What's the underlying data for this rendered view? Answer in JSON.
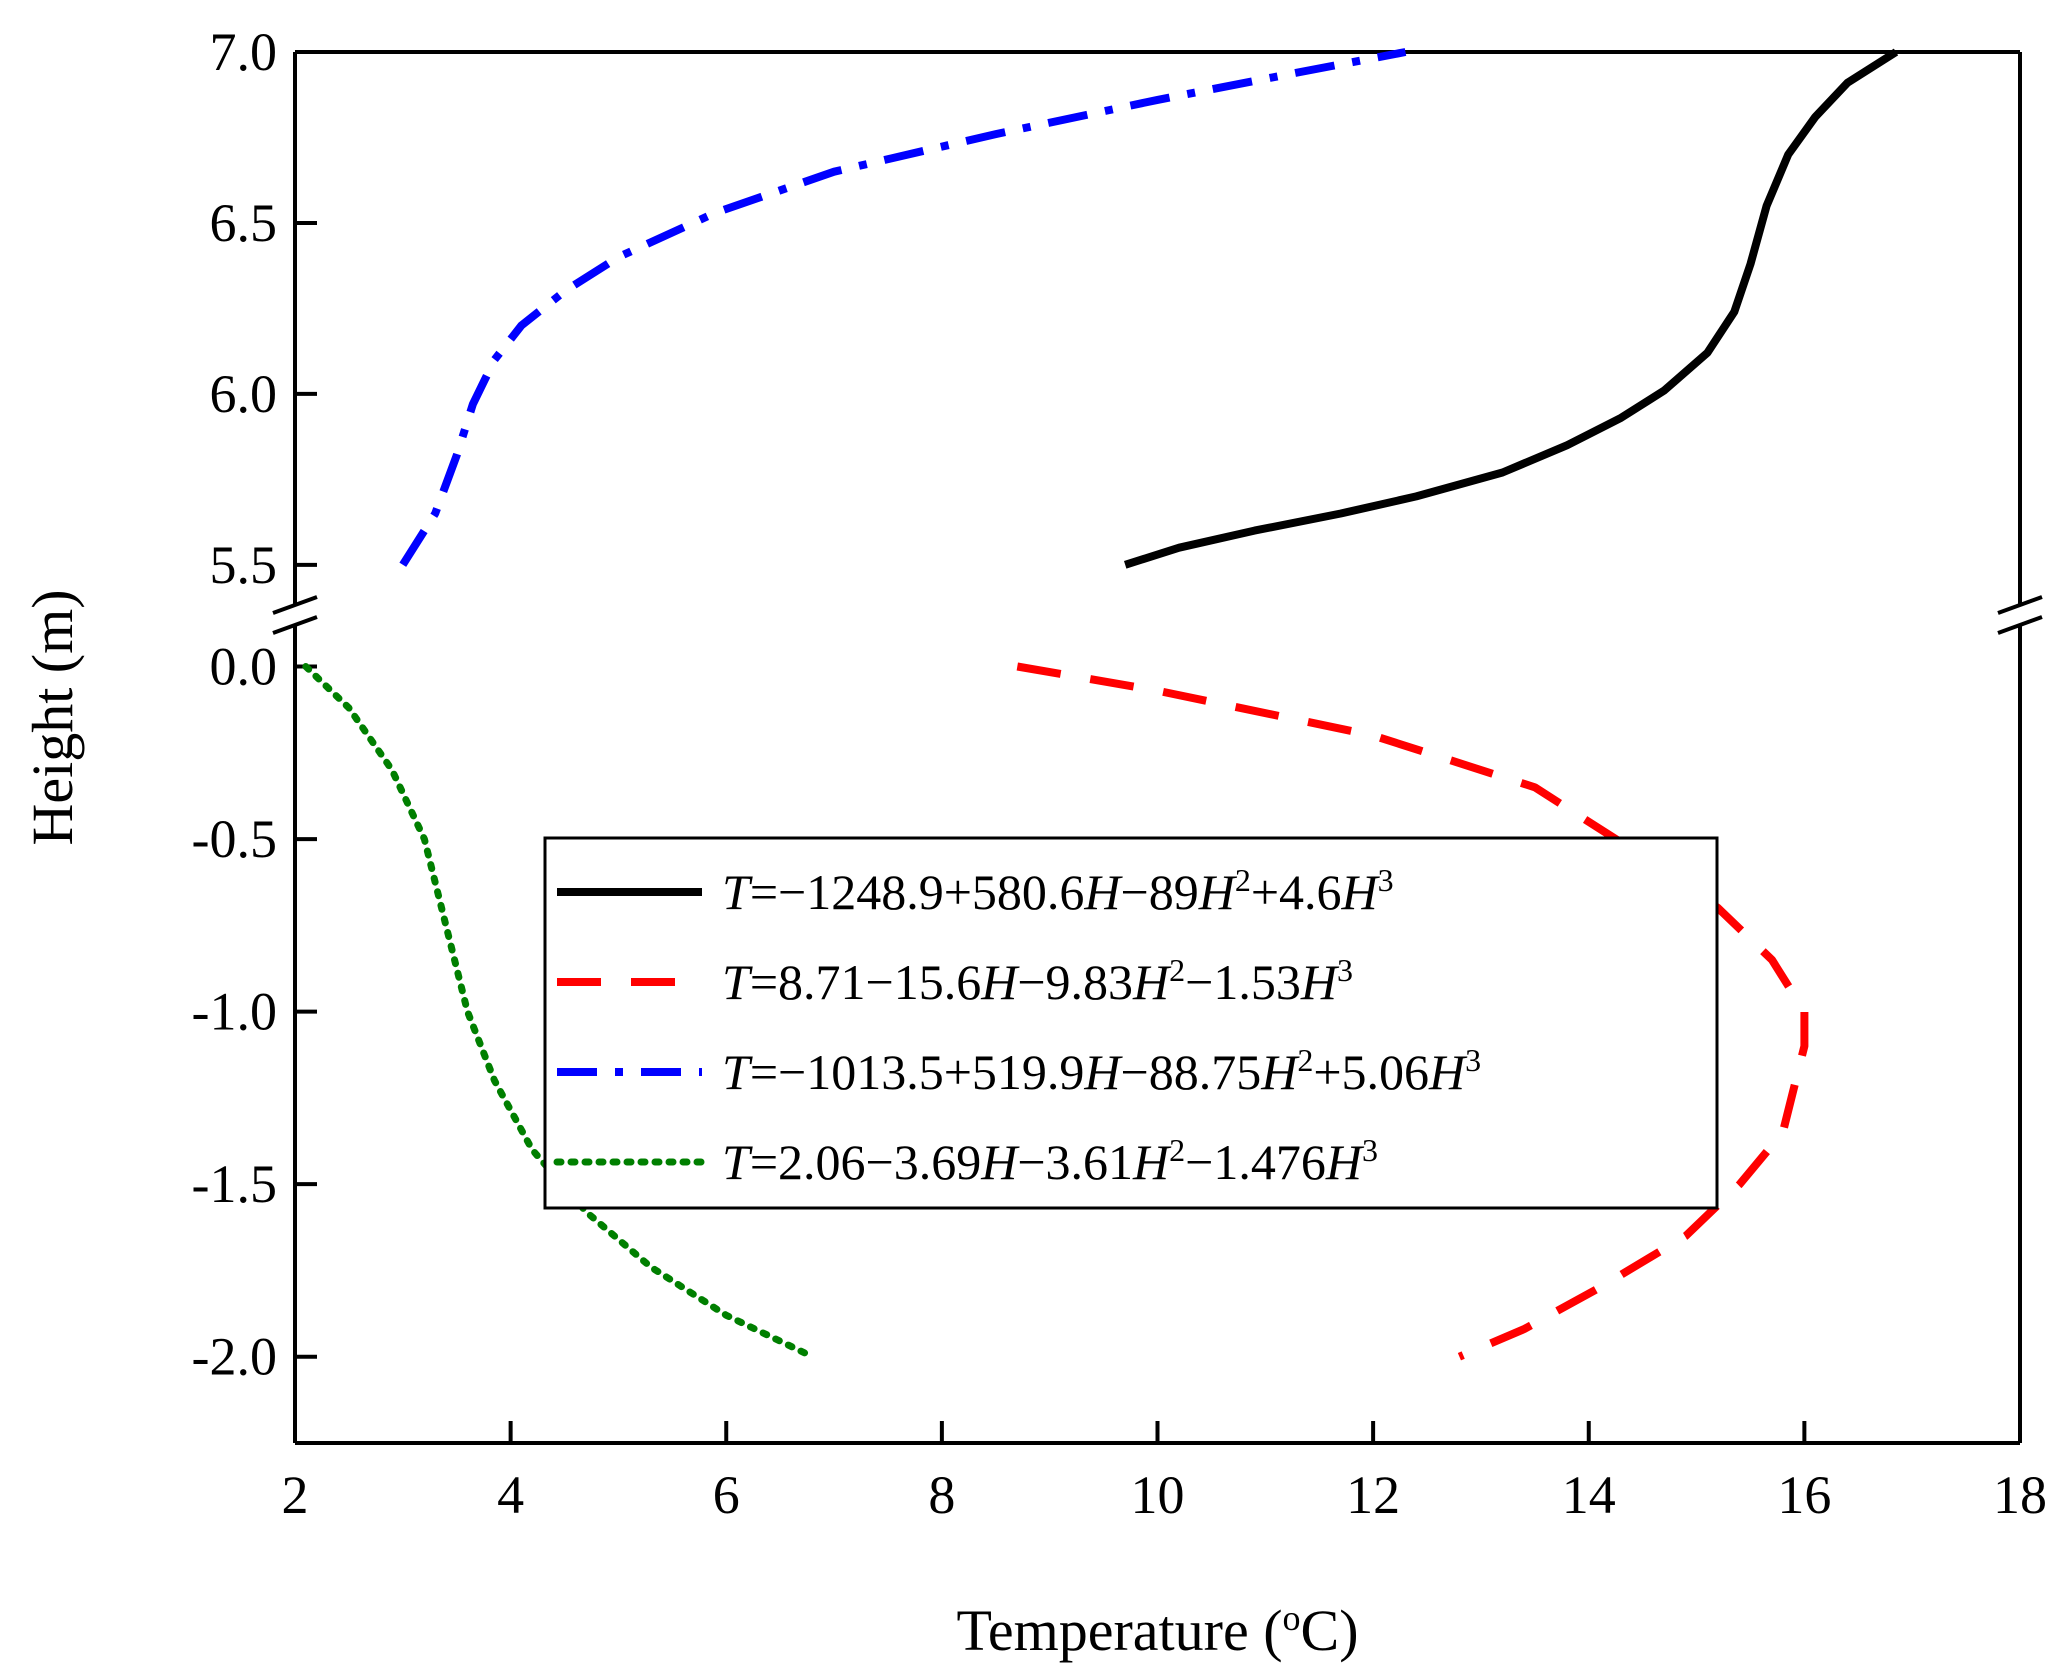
{
  "chart_data": {
    "type": "line",
    "title": "",
    "xlabel": "Temperature (°C)",
    "xlabel_parts": {
      "before": "Temperature (",
      "sup": "o",
      "after": "C)"
    },
    "ylabel": "Height (m)",
    "xlim": [
      2,
      18
    ],
    "xticks": [
      2,
      4,
      6,
      8,
      10,
      12,
      14,
      16,
      18
    ],
    "xtick_labels": [
      "2",
      "4",
      "6",
      "8",
      "10",
      "12",
      "14",
      "16",
      "18"
    ],
    "y_axis_break": true,
    "upper_panel": {
      "ylim": [
        5.4,
        7.0
      ],
      "yticks": [
        5.5,
        6.0,
        6.5,
        7.0
      ],
      "ytick_labels": [
        "5.5",
        "6.0",
        "6.5",
        "7.0"
      ]
    },
    "lower_panel": {
      "ylim": [
        -2.25,
        0.1
      ],
      "yticks": [
        -2.0,
        -1.5,
        -1.0,
        -0.5,
        0.0
      ],
      "ytick_labels": [
        "-2.0",
        "-1.5",
        "-1.0",
        "-0.5",
        "0.0"
      ]
    },
    "grid": false,
    "legend_position": "center",
    "series": [
      {
        "name": "T=−1248.9+580.6H−89H^2+4.6H^3",
        "legend_parts": [
          [
            "i",
            "T"
          ],
          [
            "n",
            "=−1248.9+580.6"
          ],
          [
            "i",
            "H"
          ],
          [
            "n",
            "−89"
          ],
          [
            "i",
            "H"
          ],
          [
            "s",
            "2"
          ],
          [
            "n",
            "+4.6"
          ],
          [
            "i",
            "H"
          ],
          [
            "s",
            "3"
          ]
        ],
        "color": "#000000",
        "style": "solid",
        "panel": "upper",
        "points": [
          [
            9.7,
            5.5
          ],
          [
            10.2,
            5.55
          ],
          [
            10.9,
            5.6
          ],
          [
            11.7,
            5.65
          ],
          [
            12.4,
            5.7
          ],
          [
            13.2,
            5.77
          ],
          [
            13.8,
            5.85
          ],
          [
            14.3,
            5.93
          ],
          [
            14.7,
            6.01
          ],
          [
            15.1,
            6.12
          ],
          [
            15.35,
            6.24
          ],
          [
            15.5,
            6.38
          ],
          [
            15.65,
            6.55
          ],
          [
            15.85,
            6.7
          ],
          [
            16.1,
            6.81
          ],
          [
            16.4,
            6.91
          ],
          [
            16.85,
            7.0
          ]
        ]
      },
      {
        "name": "T=8.71−15.6H−9.83H^2−1.53H^3",
        "legend_parts": [
          [
            "i",
            "T"
          ],
          [
            "n",
            "=8.71−15.6"
          ],
          [
            "i",
            "H"
          ],
          [
            "n",
            "−9.83"
          ],
          [
            "i",
            "H"
          ],
          [
            "s",
            "2"
          ],
          [
            "n",
            "−1.53"
          ],
          [
            "i",
            "H"
          ],
          [
            "s",
            "3"
          ]
        ],
        "color": "#ff0000",
        "style": "dashed",
        "panel": "lower",
        "points": [
          [
            8.7,
            0.0
          ],
          [
            10.0,
            -0.07
          ],
          [
            12.0,
            -0.2
          ],
          [
            13.5,
            -0.35
          ],
          [
            14.5,
            -0.55
          ],
          [
            15.2,
            -0.7
          ],
          [
            15.7,
            -0.85
          ],
          [
            16.0,
            -1.0
          ],
          [
            16.0,
            -1.1
          ],
          [
            15.8,
            -1.35
          ],
          [
            15.4,
            -1.5
          ],
          [
            14.9,
            -1.65
          ],
          [
            14.1,
            -1.8
          ],
          [
            13.4,
            -1.92
          ],
          [
            12.8,
            -2.0
          ]
        ]
      },
      {
        "name": "T=−1013.5+519.9H−88.75H^2+5.06H^3",
        "legend_parts": [
          [
            "i",
            "T"
          ],
          [
            "n",
            "=−1013.5+519.9"
          ],
          [
            "i",
            "H"
          ],
          [
            "n",
            "−88.75"
          ],
          [
            "i",
            "H"
          ],
          [
            "s",
            "2"
          ],
          [
            "n",
            "+5.06"
          ],
          [
            "i",
            "H"
          ],
          [
            "s",
            "3"
          ]
        ],
        "color": "#0000ff",
        "style": "dashdot",
        "panel": "upper",
        "points": [
          [
            3.0,
            5.5
          ],
          [
            3.3,
            5.65
          ],
          [
            3.5,
            5.82
          ],
          [
            3.65,
            5.97
          ],
          [
            3.85,
            6.1
          ],
          [
            4.1,
            6.2
          ],
          [
            4.5,
            6.3
          ],
          [
            5.0,
            6.4
          ],
          [
            5.9,
            6.53
          ],
          [
            7.0,
            6.65
          ],
          [
            8.5,
            6.76
          ],
          [
            10.0,
            6.86
          ],
          [
            11.3,
            6.94
          ],
          [
            12.3,
            7.0
          ]
        ]
      },
      {
        "name": "T=2.06−3.69H−3.61H^2−1.476H^3",
        "legend_parts": [
          [
            "i",
            "T"
          ],
          [
            "n",
            "=2.06−3.69"
          ],
          [
            "i",
            "H"
          ],
          [
            "n",
            "−3.61"
          ],
          [
            "i",
            "H"
          ],
          [
            "s",
            "2"
          ],
          [
            "n",
            "−1.476"
          ],
          [
            "i",
            "H"
          ],
          [
            "s",
            "3"
          ]
        ],
        "color": "#007f00",
        "style": "dotted",
        "panel": "lower",
        "points": [
          [
            2.1,
            0.0
          ],
          [
            2.5,
            -0.12
          ],
          [
            2.9,
            -0.3
          ],
          [
            3.2,
            -0.5
          ],
          [
            3.4,
            -0.75
          ],
          [
            3.6,
            -1.0
          ],
          [
            3.85,
            -1.2
          ],
          [
            4.2,
            -1.4
          ],
          [
            4.7,
            -1.58
          ],
          [
            5.3,
            -1.74
          ],
          [
            6.0,
            -1.88
          ],
          [
            6.8,
            -2.0
          ]
        ]
      }
    ]
  }
}
